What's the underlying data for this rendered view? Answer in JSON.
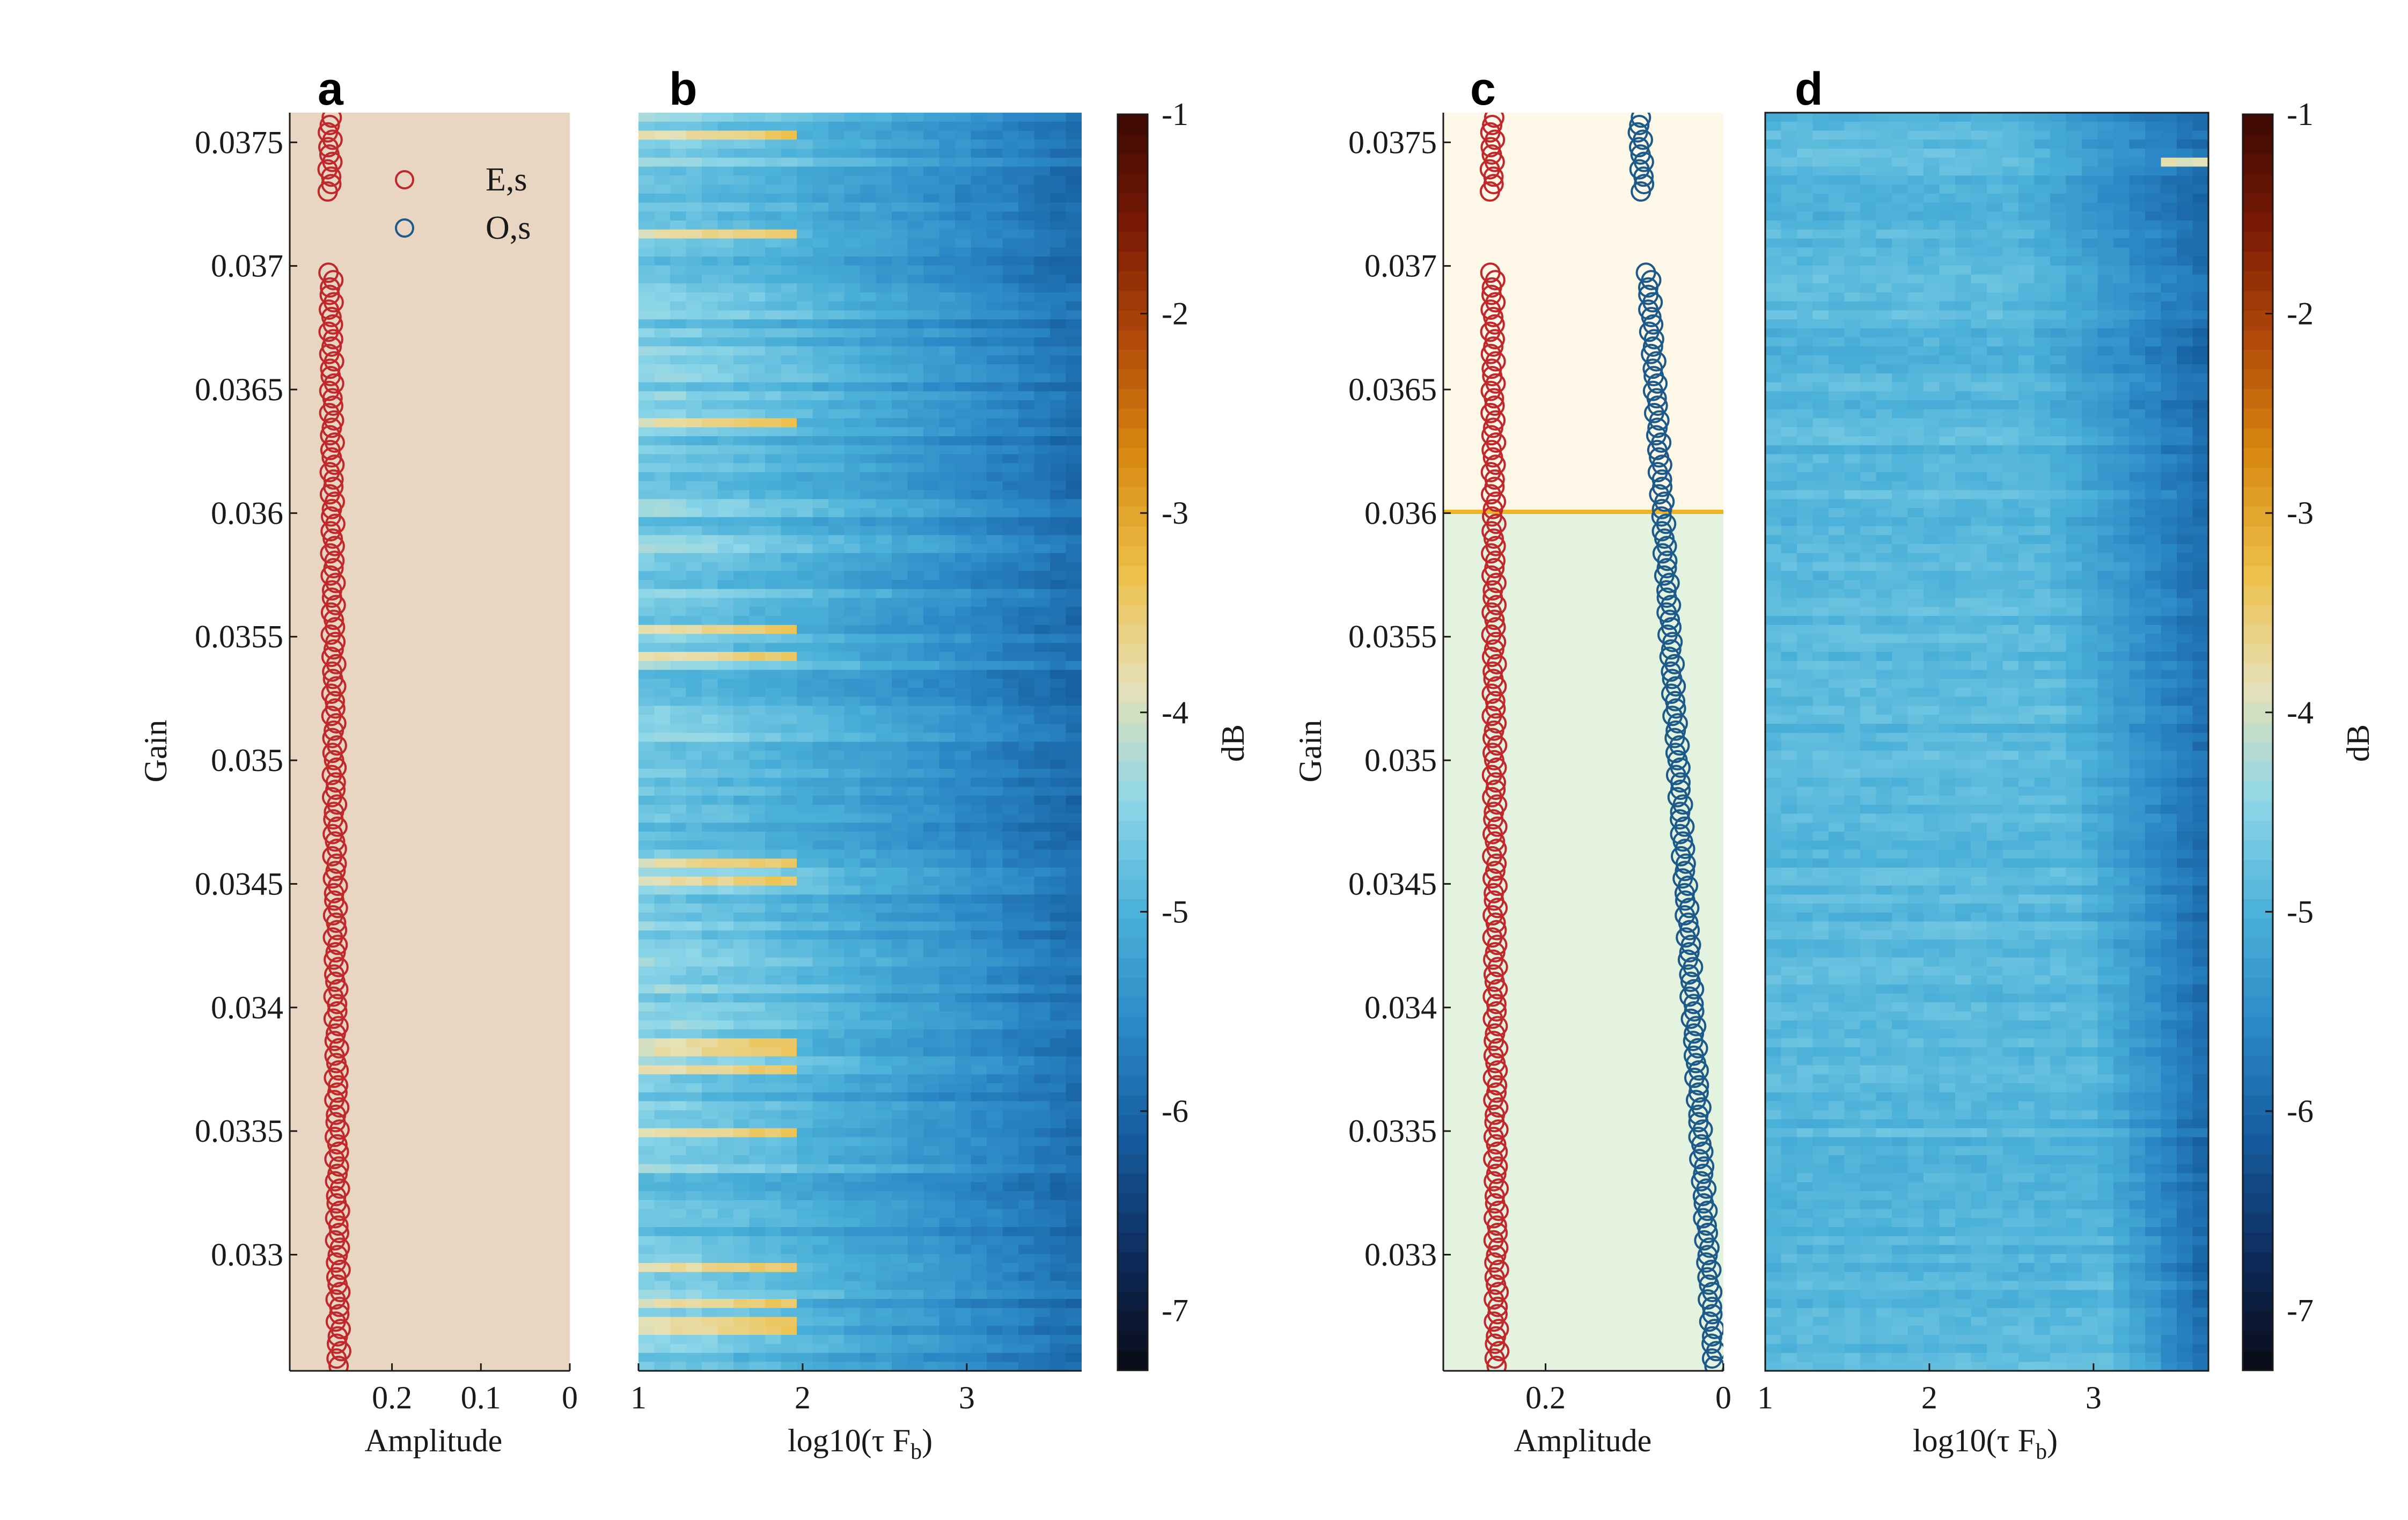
{
  "chart_data": [
    {
      "panel": "a",
      "type": "scatter",
      "xlabel": "Amplitude",
      "ylabel": "Gain",
      "xlim": [
        0,
        0.315
      ],
      "x_reversed": true,
      "ylim": [
        0.03253,
        0.03762
      ],
      "xticks": [
        "0.2",
        "0.1",
        "0"
      ],
      "yticks": [
        "0.033",
        "0.0335",
        "0.034",
        "0.0345",
        "0.035",
        "0.0355",
        "0.036",
        "0.0365",
        "0.037",
        "0.0375"
      ],
      "background": "#e8d6c2",
      "legend": {
        "position": "top-right",
        "entries": [
          "E,s",
          "O,s"
        ]
      },
      "series": [
        {
          "name": "E,s",
          "color": "#c0282b",
          "gain_range": [
            0.03255,
            0.0376
          ],
          "gap": [
            0.037,
            0.0373
          ],
          "amplitude_start": 0.26,
          "amplitude_end": 0.27
        }
      ]
    },
    {
      "panel": "b",
      "type": "heatmap",
      "xlabel": "log10(τ F_b)",
      "xlim": [
        1,
        3.7
      ],
      "xticks": [
        "1",
        "2",
        "3"
      ],
      "colorbar": {
        "label": "dB",
        "range": [
          -7.3,
          -1
        ],
        "ticks": [
          "-1",
          "-2",
          "-3",
          "-4",
          "-5",
          "-6",
          "-7"
        ]
      },
      "description_values": {
        "typical_left_dB": -4.6,
        "typical_right_dB": -5.9,
        "stripe_max_dB": -3.9
      }
    },
    {
      "panel": "c",
      "type": "scatter",
      "xlabel": "Amplitude",
      "ylabel": "Gain",
      "xlim": [
        0,
        0.315
      ],
      "x_reversed": true,
      "ylim": [
        0.03253,
        0.03762
      ],
      "xticks": [
        "0.2",
        "0"
      ],
      "yticks": [
        "0.033",
        "0.0335",
        "0.034",
        "0.0345",
        "0.035",
        "0.0355",
        "0.036",
        "0.0365",
        "0.037",
        "0.0375"
      ],
      "threshold_gain": 0.036,
      "threshold_color": "#f0b323",
      "region_colors": {
        "above": "#fdf8e8",
        "below": "#e3f3df"
      },
      "series": [
        {
          "name": "E,s",
          "color": "#c0282b",
          "gain_range": [
            0.03255,
            0.0376
          ],
          "gap": [
            0.037,
            0.0373
          ],
          "amplitude_start": 0.255,
          "amplitude_end": 0.26
        },
        {
          "name": "O,s",
          "color": "#1d5a8a",
          "gain_range": [
            0.03255,
            0.0376
          ],
          "gap": [
            0.037,
            0.0373
          ],
          "amplitude_start": 0.01,
          "amplitude_end": 0.095
        }
      ]
    },
    {
      "panel": "d",
      "type": "heatmap",
      "xlabel": "log10(τ F_b)",
      "xlim": [
        1,
        3.7
      ],
      "xticks": [
        "1",
        "2",
        "3"
      ],
      "colorbar": {
        "label": "dB",
        "range": [
          -7.3,
          -1
        ],
        "ticks": [
          "-1",
          "-2",
          "-3",
          "-4",
          "-5",
          "-6",
          "-7"
        ]
      },
      "description_values": {
        "typical_left_dB": -4.9,
        "typical_right_dB": -5.9
      }
    }
  ],
  "labels": {
    "panel_a": "a",
    "panel_b": "b",
    "panel_c": "c",
    "panel_d": "d",
    "ylabel_left": "Gain",
    "ylabel_right": "Gain",
    "xlabel_a": "Amplitude",
    "xlabel_b": "log10(τ F",
    "xlabel_b_sub": "b",
    "xlabel_c": "Amplitude",
    "xlabel_d": "log10(τ F",
    "xlabel_d_sub": "b",
    "colorbar_label_1": "dB",
    "colorbar_label_2": "dB",
    "legend_es": "E,s",
    "legend_os": "O,s"
  },
  "colormap": [
    "#080a14",
    "#0e2c5c",
    "#145a9c",
    "#2b88c6",
    "#4ab0d8",
    "#8fd7e8",
    "#e7e1b6",
    "#edbf48",
    "#d98a12",
    "#b34b0a",
    "#7a1a04",
    "#3a0802"
  ]
}
